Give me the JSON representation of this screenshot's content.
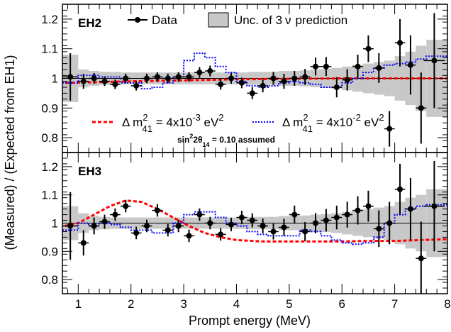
{
  "chart_data": {
    "type": "scatter",
    "xlabel": "Prompt energy (MeV)",
    "ylabel": "(Measured) / (Expected from EH1)",
    "xlim": [
      0.7,
      8.0
    ],
    "x_ticks": [
      "1",
      "2",
      "3",
      "4",
      "5",
      "6",
      "7",
      "8"
    ],
    "legend": {
      "data": "Data",
      "band": "Unc. of 3",
      "band_nu": "ν",
      "band_tail": "prediction",
      "red_prefix": "Δ m",
      "red_sup": "2",
      "red_sub": "41",
      "red_value": " = 4x10",
      "red_exp": "-3",
      "red_unit": " eV",
      "red_unit_sup": "2",
      "blue_prefix": "Δ m",
      "blue_sup": "2",
      "blue_sub": "41",
      "blue_value": " = 4x10",
      "blue_exp": "-2",
      "blue_unit": " eV",
      "blue_unit_sup": "2",
      "note_a": "sin",
      "note_sup": "2",
      "note_b": "2θ",
      "note_sub": "14",
      "note_c": " = 0.10 assumed"
    },
    "colors": {
      "red": "#ff0000",
      "blue": "#0000ff",
      "band": "#c8c8c8",
      "data": "#000000"
    },
    "x_centers": [
      0.85,
      1.1,
      1.3,
      1.5,
      1.7,
      1.9,
      2.1,
      2.3,
      2.5,
      2.7,
      2.9,
      3.1,
      3.3,
      3.5,
      3.7,
      3.9,
      4.1,
      4.3,
      4.5,
      4.7,
      4.9,
      5.1,
      5.3,
      5.5,
      5.7,
      5.9,
      6.1,
      6.3,
      6.5,
      6.7,
      6.9,
      7.1,
      7.3,
      7.5,
      7.75
    ],
    "x_edges": [
      0.7,
      1.0,
      1.2,
      1.4,
      1.6,
      1.8,
      2.0,
      2.2,
      2.4,
      2.6,
      2.8,
      3.0,
      3.2,
      3.4,
      3.6,
      3.8,
      4.0,
      4.2,
      4.4,
      4.6,
      4.8,
      5.0,
      5.2,
      5.4,
      5.6,
      5.8,
      6.0,
      6.2,
      6.4,
      6.6,
      6.8,
      7.0,
      7.2,
      7.4,
      7.6,
      8.0
    ],
    "panels": [
      {
        "label": "EH2",
        "ylim": [
          0.75,
          1.25
        ],
        "y_ticks": [
          0.8,
          0.9,
          1.0,
          1.1,
          1.2
        ],
        "y_tick_labels": [
          "0.8",
          "0.9",
          "1",
          "1.1",
          "1.2"
        ],
        "data_y": [
          1.005,
          0.99,
          1.0,
          0.99,
          0.98,
          1.0,
          0.975,
          1.0,
          1.005,
          1.0,
          1.005,
          1.005,
          1.02,
          1.025,
          0.98,
          1.0,
          0.985,
          0.95,
          0.975,
          1.0,
          0.99,
          1.0,
          1.005,
          1.04,
          1.04,
          0.97,
          0.995,
          1.04,
          1.1,
          1.035,
          0.83,
          1.12,
          1.045,
          0.9,
          1.06
        ],
        "data_err": [
          0.08,
          0.025,
          0.018,
          0.016,
          0.016,
          0.016,
          0.016,
          0.016,
          0.016,
          0.016,
          0.016,
          0.016,
          0.018,
          0.018,
          0.018,
          0.018,
          0.018,
          0.02,
          0.022,
          0.022,
          0.025,
          0.025,
          0.027,
          0.03,
          0.032,
          0.034,
          0.036,
          0.04,
          0.045,
          0.05,
          0.06,
          0.08,
          0.1,
          0.12,
          0.16
        ],
        "band_half": [
          0.08,
          0.03,
          0.025,
          0.022,
          0.022,
          0.02,
          0.02,
          0.02,
          0.02,
          0.02,
          0.02,
          0.02,
          0.02,
          0.02,
          0.02,
          0.02,
          0.02,
          0.022,
          0.022,
          0.022,
          0.025,
          0.025,
          0.027,
          0.03,
          0.032,
          0.035,
          0.04,
          0.045,
          0.05,
          0.055,
          0.06,
          0.075,
          0.09,
          0.11,
          0.13
        ],
        "red_curve": {
          "x": [
            0.75,
            2.0,
            4.0,
            6.0,
            7.0,
            8.0
          ],
          "y": [
            0.985,
            0.99,
            0.997,
            1.0,
            1.0,
            1.0
          ]
        },
        "blue_steps": [
          0.985,
          1.01,
          1.01,
          1.005,
          1.005,
          0.985,
          0.985,
          0.965,
          0.97,
          0.985,
          1.005,
          1.06,
          1.085,
          1.07,
          1.04,
          1.02,
          0.99,
          0.975,
          0.97,
          0.975,
          0.985,
          0.99,
          0.985,
          0.98,
          0.97,
          0.97,
          0.985,
          1.0,
          1.02,
          1.035,
          1.045,
          1.05,
          1.055,
          1.065,
          1.075
        ]
      },
      {
        "label": "EH3",
        "ylim": [
          0.75,
          1.25
        ],
        "y_ticks": [
          0.8,
          0.9,
          1.0,
          1.1,
          1.2
        ],
        "y_tick_labels": [
          "0.8",
          "0.9",
          "1",
          "1.1",
          "1.2"
        ],
        "data_y": [
          0.99,
          0.93,
          0.99,
          1.005,
          1.03,
          1.06,
          0.965,
          0.99,
          1.045,
          0.975,
          0.99,
          0.955,
          1.03,
          1.0,
          0.96,
          0.995,
          1.02,
          1.01,
          0.99,
          0.97,
          0.985,
          1.03,
          0.97,
          1.0,
          1.01,
          1.02,
          1.03,
          1.045,
          1.06,
          0.98,
          1.0,
          1.12,
          1.05,
          0.875,
          1.06
        ],
        "data_err": [
          0.12,
          0.045,
          0.03,
          0.025,
          0.022,
          0.022,
          0.022,
          0.022,
          0.022,
          0.022,
          0.022,
          0.022,
          0.022,
          0.022,
          0.022,
          0.024,
          0.024,
          0.025,
          0.026,
          0.028,
          0.03,
          0.032,
          0.034,
          0.036,
          0.04,
          0.042,
          0.046,
          0.05,
          0.055,
          0.065,
          0.075,
          0.09,
          0.11,
          0.13,
          0.16
        ],
        "band_half": [
          0.06,
          0.035,
          0.025,
          0.022,
          0.02,
          0.02,
          0.02,
          0.02,
          0.02,
          0.02,
          0.02,
          0.02,
          0.02,
          0.02,
          0.02,
          0.02,
          0.02,
          0.022,
          0.022,
          0.022,
          0.025,
          0.025,
          0.027,
          0.03,
          0.032,
          0.035,
          0.04,
          0.045,
          0.05,
          0.055,
          0.06,
          0.075,
          0.09,
          0.1,
          0.12
        ],
        "red_curve": {
          "x": [
            0.75,
            1.0,
            1.3,
            1.6,
            1.9,
            2.2,
            2.5,
            2.8,
            3.1,
            3.4,
            3.7,
            4.0,
            4.5,
            5.0,
            5.5,
            6.0,
            6.5,
            7.0,
            7.5,
            8.0
          ],
          "y": [
            0.99,
            1.0,
            1.03,
            1.06,
            1.08,
            1.075,
            1.05,
            1.02,
            0.99,
            0.965,
            0.95,
            0.94,
            0.935,
            0.935,
            0.935,
            0.935,
            0.937,
            0.937,
            0.94,
            0.943
          ]
        },
        "blue_steps": [
          0.975,
          1.0,
          0.99,
          1.0,
          0.995,
          0.985,
          0.975,
          0.975,
          0.965,
          0.965,
          1.0,
          1.03,
          1.04,
          1.04,
          1.02,
          1.0,
          0.99,
          0.97,
          0.96,
          0.955,
          0.955,
          0.955,
          0.975,
          0.97,
          0.955,
          0.94,
          0.93,
          0.925,
          0.93,
          0.95,
          1.0,
          1.03,
          1.05,
          1.06,
          1.065
        ]
      }
    ]
  }
}
